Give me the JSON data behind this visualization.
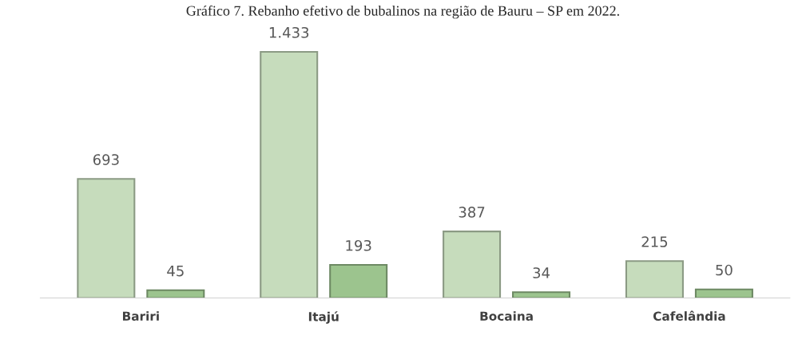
{
  "chart_data": {
    "type": "bar",
    "title": "Gráfico 7. Rebanho efetivo de bubalinos na região de Bauru – SP em 2022.",
    "categories": [
      "Bariri",
      "Itajú",
      "Bocaina",
      "Cafelândia"
    ],
    "series": [
      {
        "color": "#c6dcbc",
        "values": [
          693,
          1433,
          387,
          215
        ],
        "value_labels": [
          "693",
          "1.433",
          "387",
          "215"
        ]
      },
      {
        "color": "#9cc48e",
        "values": [
          45,
          193,
          34,
          50
        ],
        "value_labels": [
          "45",
          "193",
          "34",
          "50"
        ]
      }
    ],
    "grid": false
  }
}
